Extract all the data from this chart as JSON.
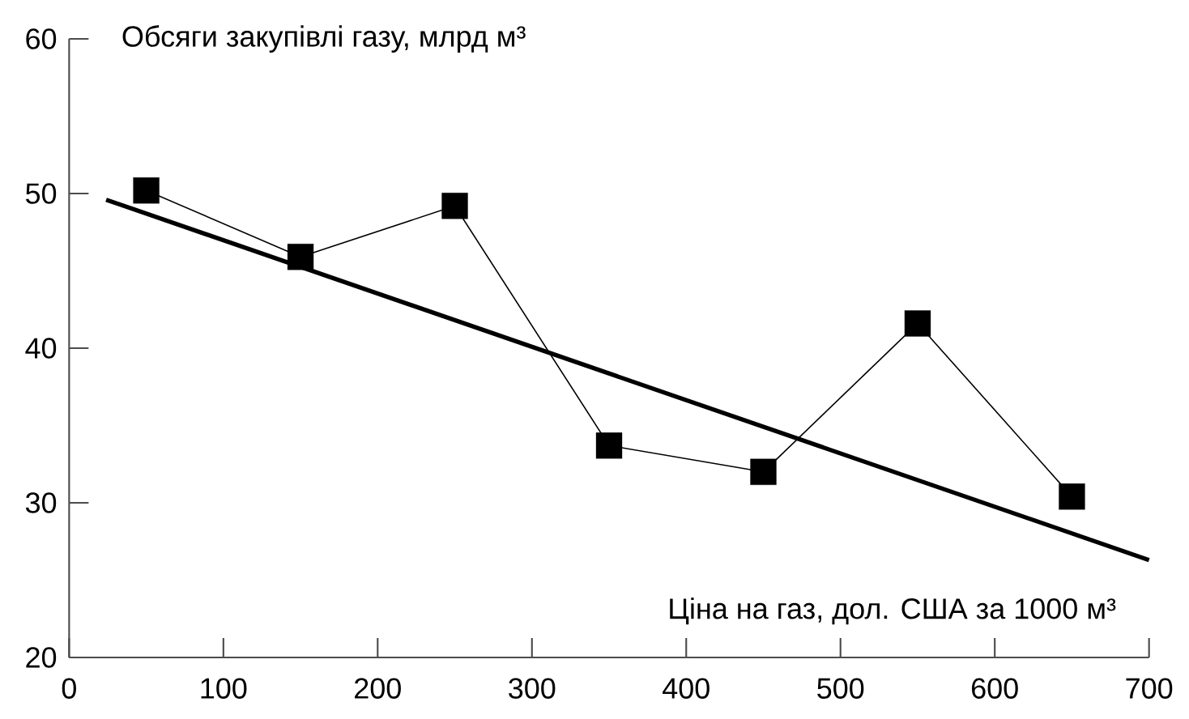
{
  "chart_data": {
    "type": "line",
    "ylabel": "Обсяги закупівлі газу, млрд м³",
    "xlabel": "Ціна на газ, дол. США за 1000 м³",
    "x": [
      50,
      150,
      250,
      350,
      450,
      550,
      650
    ],
    "series": [
      {
        "color": "#000000",
        "marker": "square",
        "values": [
          50.2,
          45.9,
          49.2,
          33.7,
          32.0,
          41.6,
          30.4
        ]
      },
      {
        "color": "#000000",
        "marker": "none",
        "x": [
          24,
          700
        ],
        "values": [
          49.6,
          26.3
        ]
      }
    ],
    "xlim": [
      0,
      700
    ],
    "xticks": [
      0,
      100,
      200,
      300,
      400,
      500,
      600,
      700
    ],
    "ylim": [
      20,
      60
    ],
    "yticks": [
      20,
      30,
      40,
      50,
      60
    ],
    "grid": false
  }
}
